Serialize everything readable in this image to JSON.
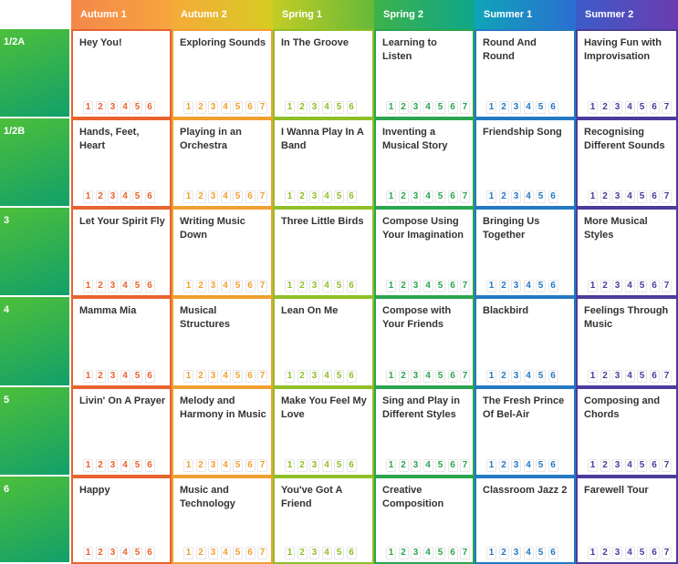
{
  "terms": [
    {
      "label": "Autumn 1",
      "color": "#e8632d",
      "gradient": [
        "#f4874b",
        "#f6a53e"
      ]
    },
    {
      "label": "Autumn 2",
      "color": "#f0a030",
      "gradient": [
        "#f6aa3a",
        "#d6cc22"
      ]
    },
    {
      "label": "Spring 1",
      "color": "#8fbf27",
      "gradient": [
        "#c3cd24",
        "#66b93a"
      ]
    },
    {
      "label": "Spring 2",
      "color": "#2ba54e",
      "gradient": [
        "#3eb24a",
        "#0ea68a"
      ]
    },
    {
      "label": "Summer 1",
      "color": "#2479c2",
      "gradient": [
        "#10a4b8",
        "#2a6ed1"
      ]
    },
    {
      "label": "Summer 2",
      "color": "#4a3c9c",
      "gradient": [
        "#3c5cc8",
        "#6b3cb0"
      ]
    }
  ],
  "rows": [
    {
      "label": "1/2A",
      "units": [
        {
          "title": "Hey You!",
          "steps": [
            "1",
            "2",
            "3",
            "4",
            "5",
            "6"
          ]
        },
        {
          "title": "Exploring Sounds",
          "steps": [
            "1",
            "2",
            "3",
            "4",
            "5",
            "6",
            "7"
          ]
        },
        {
          "title": "In The Groove",
          "steps": [
            "1",
            "2",
            "3",
            "4",
            "5",
            "6"
          ]
        },
        {
          "title": "Learning to Listen",
          "steps": [
            "1",
            "2",
            "3",
            "4",
            "5",
            "6",
            "7"
          ]
        },
        {
          "title": "Round And Round",
          "steps": [
            "1",
            "2",
            "3",
            "4",
            "5",
            "6"
          ]
        },
        {
          "title": "Having Fun with Improvisation",
          "steps": [
            "1",
            "2",
            "3",
            "4",
            "5",
            "6",
            "7"
          ]
        }
      ]
    },
    {
      "label": "1/2B",
      "units": [
        {
          "title": "Hands, Feet, Heart",
          "steps": [
            "1",
            "2",
            "3",
            "4",
            "5",
            "6"
          ]
        },
        {
          "title": "Playing in an Orchestra",
          "steps": [
            "1",
            "2",
            "3",
            "4",
            "5",
            "6",
            "7"
          ]
        },
        {
          "title": "I Wanna Play In A Band",
          "steps": [
            "1",
            "2",
            "3",
            "4",
            "5",
            "6"
          ]
        },
        {
          "title": "Inventing a Musical Story",
          "steps": [
            "1",
            "2",
            "3",
            "4",
            "5",
            "6",
            "7"
          ]
        },
        {
          "title": "Friendship Song",
          "steps": [
            "1",
            "2",
            "3",
            "4",
            "5",
            "6"
          ]
        },
        {
          "title": "Recognising Different Sounds",
          "steps": [
            "1",
            "2",
            "3",
            "4",
            "5",
            "6",
            "7"
          ]
        }
      ]
    },
    {
      "label": "3",
      "units": [
        {
          "title": "Let Your Spirit Fly",
          "steps": [
            "1",
            "2",
            "3",
            "4",
            "5",
            "6"
          ]
        },
        {
          "title": "Writing Music Down",
          "steps": [
            "1",
            "2",
            "3",
            "4",
            "5",
            "6",
            "7"
          ]
        },
        {
          "title": "Three Little Birds",
          "steps": [
            "1",
            "2",
            "3",
            "4",
            "5",
            "6"
          ]
        },
        {
          "title": "Compose Using Your Imagination",
          "steps": [
            "1",
            "2",
            "3",
            "4",
            "5",
            "6",
            "7"
          ]
        },
        {
          "title": "Bringing Us Together",
          "steps": [
            "1",
            "2",
            "3",
            "4",
            "5",
            "6"
          ]
        },
        {
          "title": "More Musical Styles",
          "steps": [
            "1",
            "2",
            "3",
            "4",
            "5",
            "6",
            "7"
          ]
        }
      ]
    },
    {
      "label": "4",
      "units": [
        {
          "title": "Mamma Mia",
          "steps": [
            "1",
            "2",
            "3",
            "4",
            "5",
            "6"
          ]
        },
        {
          "title": "Musical Structures",
          "steps": [
            "1",
            "2",
            "3",
            "4",
            "5",
            "6",
            "7"
          ]
        },
        {
          "title": "Lean On Me",
          "steps": [
            "1",
            "2",
            "3",
            "4",
            "5",
            "6"
          ]
        },
        {
          "title": "Compose with Your Friends",
          "steps": [
            "1",
            "2",
            "3",
            "4",
            "5",
            "6",
            "7"
          ]
        },
        {
          "title": "Blackbird",
          "steps": [
            "1",
            "2",
            "3",
            "4",
            "5",
            "6"
          ]
        },
        {
          "title": "Feelings Through Music",
          "steps": [
            "1",
            "2",
            "3",
            "4",
            "5",
            "6",
            "7"
          ]
        }
      ]
    },
    {
      "label": "5",
      "units": [
        {
          "title": "Livin' On A Prayer",
          "steps": [
            "1",
            "2",
            "3",
            "4",
            "5",
            "6"
          ]
        },
        {
          "title": "Melody and Harmony in Music",
          "steps": [
            "1",
            "2",
            "3",
            "4",
            "5",
            "6",
            "7"
          ]
        },
        {
          "title": "Make You Feel My Love",
          "steps": [
            "1",
            "2",
            "3",
            "4",
            "5",
            "6"
          ]
        },
        {
          "title": "Sing and Play in Different Styles",
          "steps": [
            "1",
            "2",
            "3",
            "4",
            "5",
            "6",
            "7"
          ]
        },
        {
          "title": "The Fresh Prince Of Bel-Air",
          "steps": [
            "1",
            "2",
            "3",
            "4",
            "5",
            "6"
          ]
        },
        {
          "title": "Composing and Chords",
          "steps": [
            "1",
            "2",
            "3",
            "4",
            "5",
            "6",
            "7"
          ]
        }
      ]
    },
    {
      "label": "6",
      "units": [
        {
          "title": "Happy",
          "steps": [
            "1",
            "2",
            "3",
            "4",
            "5",
            "6"
          ]
        },
        {
          "title": "Music and Technology",
          "steps": [
            "1",
            "2",
            "3",
            "4",
            "5",
            "6",
            "7"
          ]
        },
        {
          "title": "You've Got A Friend",
          "steps": [
            "1",
            "2",
            "3",
            "4",
            "5",
            "6"
          ]
        },
        {
          "title": "Creative Composition",
          "steps": [
            "1",
            "2",
            "3",
            "4",
            "5",
            "6",
            "7"
          ]
        },
        {
          "title": "Classroom Jazz 2",
          "steps": [
            "1",
            "2",
            "3",
            "4",
            "5",
            "6"
          ]
        },
        {
          "title": "Farewell Tour",
          "steps": [
            "1",
            "2",
            "3",
            "4",
            "5",
            "6",
            "7"
          ]
        }
      ]
    }
  ],
  "row_label_gradient": [
    "#4dbf3a",
    "#12a06a"
  ]
}
